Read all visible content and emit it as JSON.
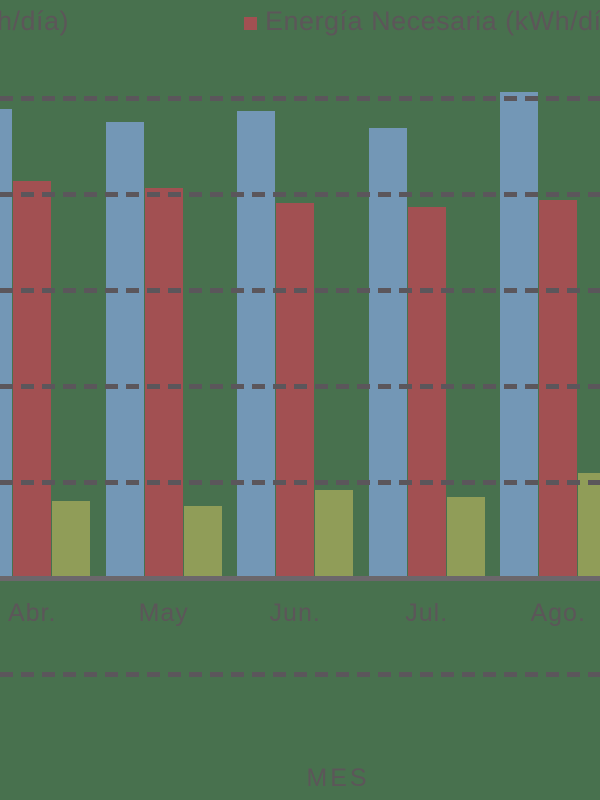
{
  "canvas": {
    "background_color": "#48714e"
  },
  "text_color": "#5c5659",
  "legend": {
    "left_partial_label": "h/día)",
    "items": [
      {
        "label": "Energía Necesaria (kWh/día)",
        "swatch_color": "#a25052"
      }
    ]
  },
  "axis": {
    "x_title": "MES",
    "line_color": "#6b676b",
    "grid_color": "#5b565b"
  },
  "chart_data": {
    "type": "bar",
    "title": "",
    "xlabel": "MES",
    "ylabel": "",
    "categories": [
      "Abr.",
      "May",
      "Jun.",
      "Jul.",
      "Ago."
    ],
    "series": [
      {
        "name": "h/día) (legend cropped)",
        "color": "#7397b6",
        "values": [
          4.89,
          4.75,
          4.86,
          4.69,
          5.06
        ]
      },
      {
        "name": "Energía Necesaria (kWh/día)",
        "color": "#a25052",
        "values": [
          4.14,
          4.06,
          3.91,
          3.86,
          3.94
        ]
      },
      {
        "name": "(legend not visible)",
        "color": "#909d58",
        "values": [
          0.8,
          0.75,
          0.92,
          0.84,
          1.09
        ]
      }
    ],
    "ylim": [
      -1,
      5.4
    ],
    "gridline_values": [
      5,
      4,
      3,
      2,
      1,
      -1
    ],
    "baseline_value": 0,
    "grid": "dashed horizontal, drawn over bars",
    "legend_position": "top"
  }
}
